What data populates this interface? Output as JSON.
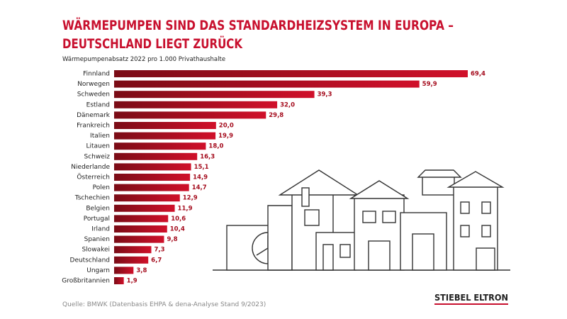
{
  "chart_data": {
    "type": "bar",
    "orientation": "horizontal",
    "title": "WÄRMEPUMPEN SIND DAS STANDARDHEIZSYSTEM IN EUROPA –",
    "title_line2": "DEUTSCHLAND LIEGT ZURÜCK",
    "subtitle": "Wärmepumpenabsatz 2022 pro 1.000 Privathaushalte",
    "source": "Quelle: BMWK (Datenbasis EHPA & dena-Analyse Stand 9/2023)",
    "brand": "STIEBEL ELTRON",
    "color": "#c8102e",
    "categories": [
      "Finnland",
      "Norwegen",
      "Schweden",
      "Estland",
      "Dänemark",
      "Frankreich",
      "Italien",
      "Litauen",
      "Schweiz",
      "Niederlande",
      "Österreich",
      "Polen",
      "Tschechien",
      "Belgien",
      "Portugal",
      "Irland",
      "Spanien",
      "Slowakei",
      "Deutschland",
      "Ungarn",
      "Großbritannien"
    ],
    "values": [
      69.4,
      59.9,
      39.3,
      32.0,
      29.8,
      20.0,
      19.9,
      18.0,
      16.3,
      15.1,
      14.9,
      14.7,
      12.9,
      11.9,
      10.6,
      10.4,
      9.8,
      7.3,
      6.7,
      3.8,
      1.9
    ],
    "value_labels": [
      "69,4",
      "59,9",
      "39,3",
      "32,0",
      "29,8",
      "20,0",
      "19,9",
      "18,0",
      "16,3",
      "15,1",
      "14,9",
      "14,7",
      "12,9",
      "11,9",
      "10,6",
      "10,4",
      "9,8",
      "7,3",
      "6,7",
      "3,8",
      "1,9"
    ]
  }
}
